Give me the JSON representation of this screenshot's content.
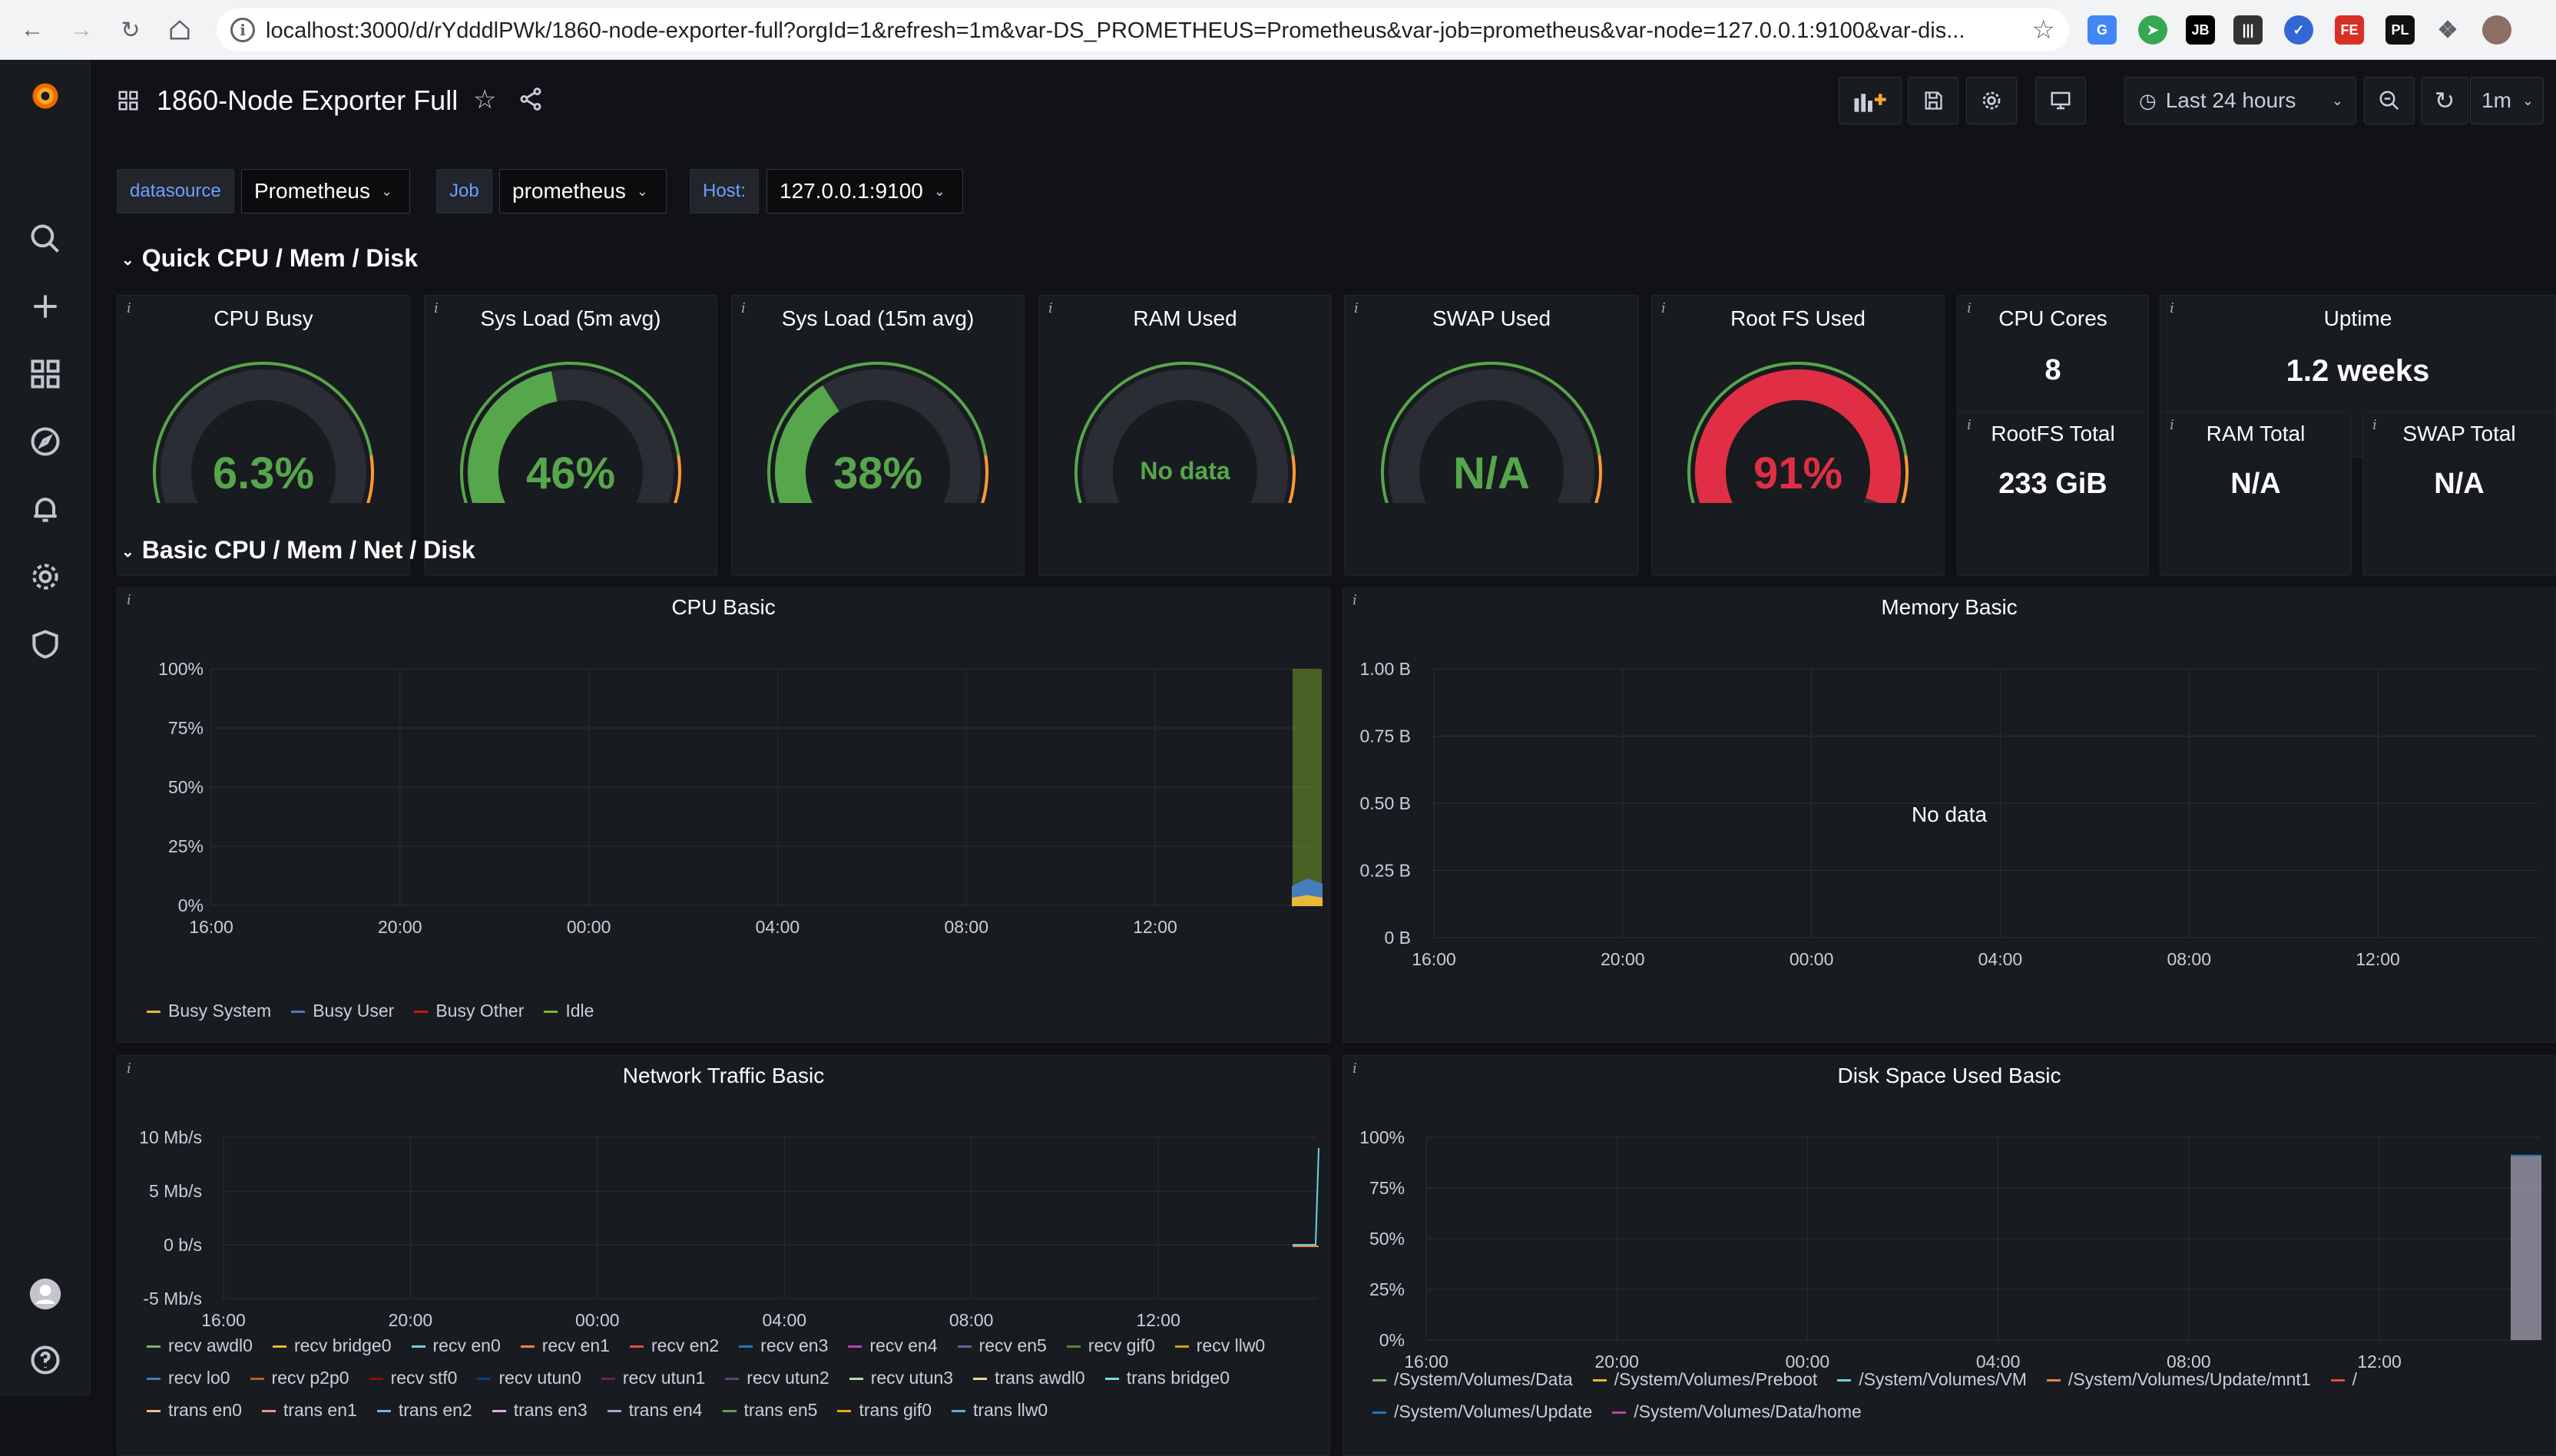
{
  "browser": {
    "url": "localhost:3000/d/rYdddlPWk/1860-node-exporter-full?orgId=1&refresh=1m&var-DS_PROMETHEUS=Prometheus&var-job=prometheus&var-node=127.0.0.1:9100&var-dis...",
    "extensions": [
      "translate-icon",
      "compass-icon",
      "jetbrains-icon",
      "barcode-icon",
      "check-icon",
      "fe-icon",
      "pl-icon",
      "puzzle-icon",
      "avatar-icon"
    ],
    "ext_labels": {
      "jb": "JB",
      "fe": "FE",
      "pl": "PL"
    }
  },
  "dashboard": {
    "title": "1860-Node Exporter Full",
    "time_range": "Last 24 hours",
    "refresh": "1m"
  },
  "variables": [
    {
      "label": "datasource",
      "value": "Prometheus"
    },
    {
      "label": "Job",
      "value": "prometheus"
    },
    {
      "label": "Host:",
      "value": "127.0.0.1:9100"
    }
  ],
  "rows": {
    "quick": "Quick CPU / Mem / Disk",
    "basic": "Basic CPU / Mem / Net / Disk"
  },
  "gauges": [
    {
      "title": "CPU Busy",
      "value": "6.3%",
      "fraction": 0.063,
      "color": "#56a64b"
    },
    {
      "title": "Sys Load (5m avg)",
      "value": "46%",
      "fraction": 0.46,
      "color": "#56a64b"
    },
    {
      "title": "Sys Load (15m avg)",
      "value": "38%",
      "fraction": 0.38,
      "color": "#56a64b"
    },
    {
      "title": "RAM Used",
      "value": "No data",
      "fraction": 0,
      "color": "#56a64b"
    },
    {
      "title": "SWAP Used",
      "value": "N/A",
      "fraction": 0,
      "color": "#56a64b"
    },
    {
      "title": "Root FS Used",
      "value": "91%",
      "fraction": 0.91,
      "color": "#e02f44"
    }
  ],
  "stats": {
    "cpu_cores": {
      "title": "CPU Cores",
      "value": "8"
    },
    "uptime": {
      "title": "Uptime",
      "value": "1.2 weeks"
    },
    "rootfs_total": {
      "title": "RootFS Total",
      "value": "233 GiB"
    },
    "ram_total": {
      "title": "RAM Total",
      "value": "N/A"
    },
    "swap_total": {
      "title": "SWAP Total",
      "value": "N/A"
    }
  },
  "panels": {
    "cpu_basic": {
      "title": "CPU Basic",
      "legend": [
        {
          "name": "Busy System",
          "color": "#eab839"
        },
        {
          "name": "Busy User",
          "color": "#447ebc"
        },
        {
          "name": "Busy Other",
          "color": "#bf1b00"
        },
        {
          "name": "Idle",
          "color": "#82b52a"
        }
      ]
    },
    "memory_basic": {
      "title": "Memory Basic",
      "no_data": "No data"
    },
    "network_basic": {
      "title": "Network Traffic Basic",
      "legend": [
        {
          "name": "recv awdl0",
          "color": "#7eb26d"
        },
        {
          "name": "recv bridge0",
          "color": "#eab839"
        },
        {
          "name": "recv en0",
          "color": "#6ed0e0"
        },
        {
          "name": "recv en1",
          "color": "#ef843c"
        },
        {
          "name": "recv en2",
          "color": "#e24d42"
        },
        {
          "name": "recv en3",
          "color": "#1f78c1"
        },
        {
          "name": "recv en4",
          "color": "#ba43a9"
        },
        {
          "name": "recv en5",
          "color": "#705da0"
        },
        {
          "name": "recv gif0",
          "color": "#508642"
        },
        {
          "name": "recv llw0",
          "color": "#cca300"
        },
        {
          "name": "recv lo0",
          "color": "#447ebc"
        },
        {
          "name": "recv p2p0",
          "color": "#c15c17"
        },
        {
          "name": "recv stf0",
          "color": "#890f02"
        },
        {
          "name": "recv utun0",
          "color": "#0a437c"
        },
        {
          "name": "recv utun1",
          "color": "#6d1f62"
        },
        {
          "name": "recv utun2",
          "color": "#584477"
        },
        {
          "name": "recv utun3",
          "color": "#b7dbab"
        },
        {
          "name": "trans awdl0",
          "color": "#f4d598"
        },
        {
          "name": "trans bridge0",
          "color": "#70dbed"
        },
        {
          "name": "trans en0",
          "color": "#f9ba8f"
        },
        {
          "name": "trans en1",
          "color": "#f29191"
        },
        {
          "name": "trans en2",
          "color": "#82b5d8"
        },
        {
          "name": "trans en3",
          "color": "#e5a8e2"
        },
        {
          "name": "trans en4",
          "color": "#aea2e0"
        },
        {
          "name": "trans en5",
          "color": "#629e51"
        },
        {
          "name": "trans gif0",
          "color": "#e5ac0e"
        },
        {
          "name": "trans llw0",
          "color": "#64b0c8"
        }
      ]
    },
    "disk_basic": {
      "title": "Disk Space Used Basic",
      "legend": [
        {
          "name": "/System/Volumes/Data",
          "color": "#7eb26d"
        },
        {
          "name": "/System/Volumes/Preboot",
          "color": "#eab839"
        },
        {
          "name": "/System/Volumes/VM",
          "color": "#6ed0e0"
        },
        {
          "name": "/System/Volumes/Update/mnt1",
          "color": "#ef843c"
        },
        {
          "name": "/",
          "color": "#e24d42"
        },
        {
          "name": "/System/Volumes/Update",
          "color": "#1f78c1"
        },
        {
          "name": "/System/Volumes/Data/home",
          "color": "#ba43a9"
        }
      ]
    }
  },
  "chart_data": [
    {
      "type": "area",
      "title": "CPU Basic",
      "x_ticks": [
        "16:00",
        "20:00",
        "00:00",
        "04:00",
        "08:00",
        "12:00"
      ],
      "y_ticks": [
        "100%",
        "75%",
        "50%",
        "25%",
        "0%"
      ],
      "ylim": [
        0,
        100
      ],
      "series": [
        {
          "name": "Busy System",
          "values": [
            3,
            4,
            3
          ]
        },
        {
          "name": "Busy User",
          "values": [
            8,
            11,
            9
          ]
        },
        {
          "name": "Idle",
          "values": [
            100,
            100,
            100
          ]
        }
      ]
    },
    {
      "type": "line",
      "title": "Memory Basic",
      "x_ticks": [
        "16:00",
        "20:00",
        "00:00",
        "04:00",
        "08:00",
        "12:00"
      ],
      "y_ticks": [
        "1.00 B",
        "0.75 B",
        "0.50 B",
        "0.25 B",
        "0 B"
      ],
      "ylim": [
        0,
        1
      ]
    },
    {
      "type": "line",
      "title": "Network Traffic Basic",
      "x_ticks": [
        "16:00",
        "20:00",
        "00:00",
        "04:00",
        "08:00",
        "12:00"
      ],
      "y_ticks": [
        "10 Mb/s",
        "5 Mb/s",
        "0 b/s",
        "-5 Mb/s"
      ],
      "ylim": [
        -5,
        10
      ],
      "series": [
        {
          "name": "recv en0",
          "values": [
            0,
            0,
            9
          ]
        }
      ]
    },
    {
      "type": "area",
      "title": "Disk Space Used Basic",
      "x_ticks": [
        "16:00",
        "20:00",
        "00:00",
        "04:00",
        "08:00",
        "12:00"
      ],
      "y_ticks": [
        "100%",
        "75%",
        "50%",
        "25%",
        "0%"
      ],
      "ylim": [
        0,
        100
      ],
      "series": [
        {
          "name": "/System/Volumes/Data",
          "values": [
            91,
            91
          ]
        }
      ]
    }
  ]
}
